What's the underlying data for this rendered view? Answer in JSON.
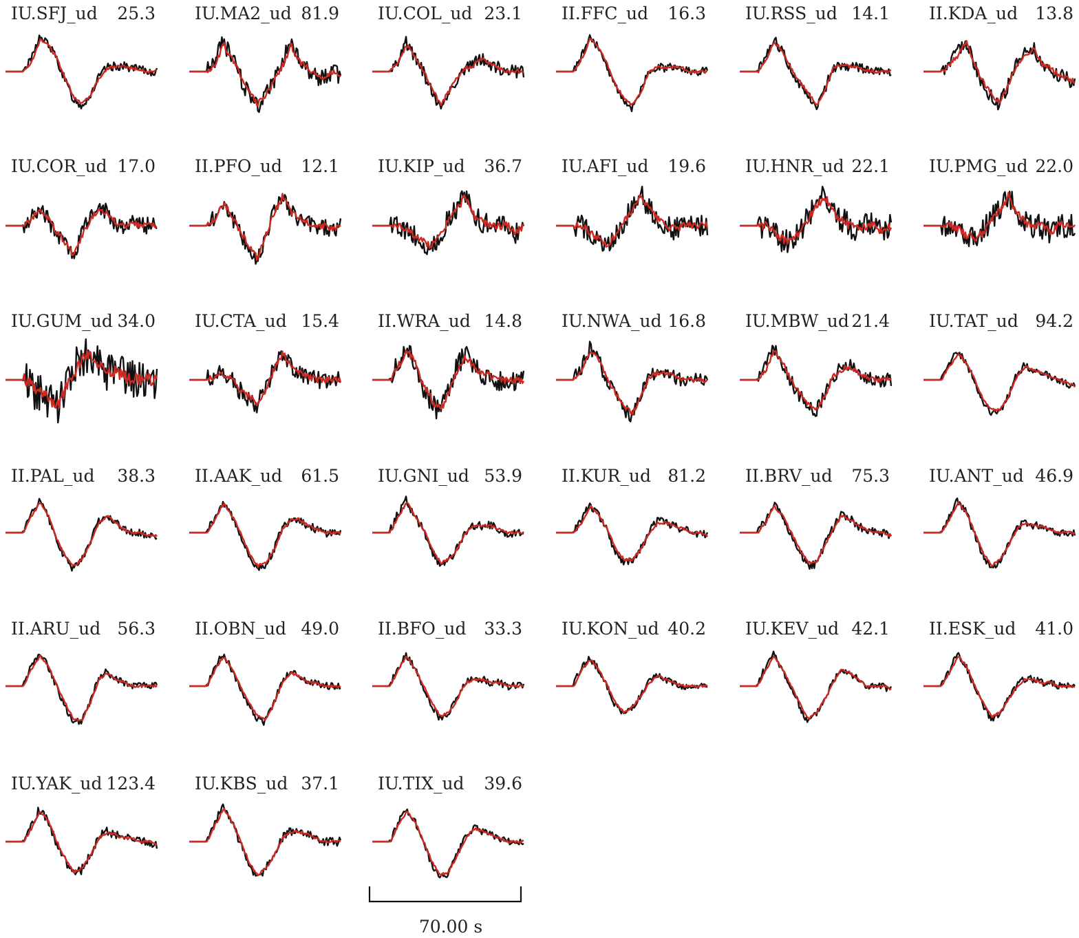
{
  "colors": {
    "observed": "#111111",
    "synthetic": "#cc2a22",
    "text": "#222222"
  },
  "stations": [
    {
      "name": "IU.SFJ_ud",
      "value": "25.3",
      "shape": [
        0,
        0,
        0,
        0.3,
        0.95,
        0.8,
        0.4,
        -0.2,
        -0.75,
        -0.95,
        -0.7,
        -0.2,
        0.1,
        0.15,
        0.15,
        0.1,
        0.05,
        0,
        0
      ],
      "noise": 0.12,
      "lag": 0.4
    },
    {
      "name": "IU.MA2_ud",
      "value": "81.9",
      "shape": [
        0,
        0,
        0,
        0.25,
        0.8,
        0.4,
        -0.1,
        -0.6,
        -1,
        -0.7,
        -0.3,
        0.2,
        0.8,
        0.3,
        0.1,
        -0.1,
        -0.2,
        0,
        -0.1
      ],
      "noise": 0.25,
      "lag": 0.6
    },
    {
      "name": "IU.COL_ud",
      "value": "23.1",
      "shape": [
        0,
        0,
        0,
        0.3,
        0.8,
        0.4,
        0,
        -0.5,
        -1,
        -0.6,
        -0.2,
        0.1,
        0.2,
        0.4,
        0.2,
        0.1,
        0,
        0,
        0
      ],
      "noise": 0.18,
      "lag": 0.3
    },
    {
      "name": "II.FFC_ud",
      "value": "16.3",
      "shape": [
        0,
        0,
        0,
        0.4,
        1,
        0.7,
        0.2,
        -0.4,
        -0.8,
        -1,
        -0.6,
        0,
        0.15,
        0.1,
        0.15,
        0.1,
        0,
        0,
        0
      ],
      "noise": 0.12,
      "lag": 0.3
    },
    {
      "name": "IU.RSS_ud",
      "value": "14.1",
      "shape": [
        0,
        0,
        0,
        0.3,
        0.9,
        0.6,
        0.1,
        -0.3,
        -0.6,
        -1,
        -0.6,
        0.1,
        0.2,
        0.15,
        0.1,
        0.05,
        0,
        0,
        0
      ],
      "noise": 0.14,
      "lag": 0.3
    },
    {
      "name": "II.KDA_ud",
      "value": "13.8",
      "shape": [
        0,
        0,
        0,
        0.2,
        0.5,
        0.9,
        0.2,
        -0.3,
        -0.7,
        -0.9,
        -0.4,
        0.2,
        0.5,
        0.7,
        0.2,
        0.1,
        -0.1,
        -0.2,
        -0.3
      ],
      "noise": 0.2,
      "lag": 0.3
    },
    {
      "name": "IU.COR_ud",
      "value": "17.0",
      "shape": [
        0,
        0,
        0,
        0.2,
        0.5,
        0.2,
        -0.2,
        -0.5,
        -0.9,
        -0.3,
        0.2,
        0.5,
        0.4,
        0.1,
        0,
        0.1,
        0,
        0,
        0
      ],
      "noise": 0.25,
      "lag": 0.4
    },
    {
      "name": "II.PFO_ud",
      "value": "12.1",
      "shape": [
        0,
        0,
        0,
        0.2,
        0.7,
        0.3,
        -0.2,
        -0.6,
        -1,
        -0.3,
        0.4,
        0.9,
        0.4,
        0.2,
        0.1,
        0,
        0,
        -0.1,
        0
      ],
      "noise": 0.25,
      "lag": 0.5
    },
    {
      "name": "IU.KIP_ud",
      "value": "36.7",
      "shape": [
        0,
        0,
        0,
        0,
        -0.1,
        -0.3,
        -0.5,
        -0.6,
        -0.3,
        0.2,
        0.5,
        0.9,
        0.3,
        0.1,
        0,
        0,
        0,
        -0.2,
        0
      ],
      "noise": 0.3,
      "lag": 0.5
    },
    {
      "name": "IU.AFI_ud",
      "value": "19.6",
      "shape": [
        0,
        0,
        0,
        0,
        -0.2,
        -0.4,
        -0.6,
        -0.3,
        0.1,
        0.5,
        0.9,
        0.5,
        0.2,
        0,
        -0.1,
        0,
        0,
        0,
        0
      ],
      "noise": 0.3,
      "lag": 0.5
    },
    {
      "name": "IU.HNR_ud",
      "value": "22.1",
      "shape": [
        0,
        0,
        0,
        0,
        -0.2,
        -0.4,
        -0.5,
        -0.2,
        0.2,
        0.6,
        0.9,
        0.4,
        0.2,
        0,
        -0.1,
        0,
        0,
        -0.2,
        0
      ],
      "noise": 0.35,
      "lag": 0.5
    },
    {
      "name": "IU.PMG_ud",
      "value": "22.0",
      "shape": [
        0,
        0,
        0,
        0,
        -0.1,
        -0.3,
        -0.4,
        -0.2,
        0.2,
        0.5,
        0.9,
        0.4,
        0.1,
        0,
        0,
        -0.2,
        0,
        0,
        0
      ],
      "noise": 0.35,
      "lag": 0.5
    },
    {
      "name": "IU.GUM_ud",
      "value": "34.0",
      "shape": [
        0,
        0,
        0,
        -0.2,
        -0.4,
        -0.6,
        -0.8,
        -0.3,
        0.2,
        0.6,
        0.8,
        0.4,
        0.2,
        0.3,
        0.1,
        0,
        0,
        0,
        0
      ],
      "noise": 0.55,
      "lag": 0.4
    },
    {
      "name": "IU.CTA_ud",
      "value": "15.4",
      "shape": [
        0,
        0,
        0,
        0.1,
        0.2,
        0,
        -0.3,
        -0.5,
        -0.7,
        -0.3,
        0.3,
        0.8,
        0.4,
        0.2,
        0.1,
        0,
        0,
        0,
        0
      ],
      "noise": 0.25,
      "lag": 0.4
    },
    {
      "name": "II.WRA_ud",
      "value": "14.8",
      "shape": [
        0,
        0,
        0,
        0.4,
        0.9,
        0.5,
        -0.2,
        -0.6,
        -0.9,
        -0.4,
        0.3,
        0.7,
        0.4,
        0.2,
        0.1,
        0,
        0,
        0,
        0
      ],
      "noise": 0.3,
      "lag": 0.4
    },
    {
      "name": "IU.NWA_ud",
      "value": "16.8",
      "shape": [
        0,
        0,
        0,
        0.3,
        0.9,
        0.6,
        0,
        -0.4,
        -0.8,
        -1,
        -0.5,
        0.1,
        0.2,
        0.2,
        0.1,
        0,
        0,
        0,
        0
      ],
      "noise": 0.2,
      "lag": 0.3
    },
    {
      "name": "IU.MBW_ud",
      "value": "21.4",
      "shape": [
        0,
        0,
        0,
        0.3,
        0.9,
        0.5,
        0,
        -0.4,
        -0.7,
        -0.9,
        -0.5,
        0.1,
        0.3,
        0.4,
        0.2,
        0.1,
        0,
        0,
        0
      ],
      "noise": 0.2,
      "lag": 0.3
    },
    {
      "name": "IU.TAT_ud",
      "value": "94.2",
      "shape": [
        0,
        0,
        0,
        0.4,
        0.8,
        0.5,
        0,
        -0.6,
        -0.9,
        -0.9,
        -0.5,
        0.1,
        0.4,
        0.3,
        0.2,
        0.1,
        0,
        -0.1,
        -0.2
      ],
      "noise": 0.1,
      "lag": 0.4
    },
    {
      "name": "II.PAL_ud",
      "value": "38.3",
      "shape": [
        0,
        0,
        0,
        0.5,
        0.9,
        0.5,
        -0.2,
        -0.7,
        -1,
        -0.8,
        -0.3,
        0.3,
        0.5,
        0.3,
        0.1,
        0,
        0,
        -0.1,
        -0.1
      ],
      "noise": 0.1,
      "lag": 0.4
    },
    {
      "name": "II.AAK_ud",
      "value": "61.5",
      "shape": [
        0,
        0,
        0,
        0.4,
        0.9,
        0.5,
        0,
        -0.6,
        -1,
        -0.9,
        -0.5,
        0.1,
        0.4,
        0.4,
        0.2,
        0.1,
        0,
        0,
        0
      ],
      "noise": 0.12,
      "lag": 0.4
    },
    {
      "name": "IU.GNI_ud",
      "value": "53.9",
      "shape": [
        0,
        0,
        0,
        0.5,
        0.9,
        0.5,
        0.1,
        -0.5,
        -0.9,
        -0.8,
        -0.5,
        0,
        0.2,
        0.2,
        0.2,
        0.1,
        0,
        0,
        0
      ],
      "noise": 0.12,
      "lag": 0.3
    },
    {
      "name": "II.KUR_ud",
      "value": "81.2",
      "shape": [
        0,
        0,
        0,
        0.3,
        0.8,
        0.5,
        0.1,
        -0.5,
        -0.8,
        -0.8,
        -0.5,
        0,
        0.3,
        0.3,
        0.2,
        0.1,
        0,
        0,
        -0.1
      ],
      "noise": 0.12,
      "lag": 0.3
    },
    {
      "name": "II.BRV_ud",
      "value": "75.3",
      "shape": [
        0,
        0,
        0,
        0.3,
        0.8,
        0.5,
        0,
        -0.5,
        -0.9,
        -0.9,
        -0.4,
        0.1,
        0.5,
        0.4,
        0.2,
        0.1,
        0,
        0,
        -0.1
      ],
      "noise": 0.12,
      "lag": 0.4
    },
    {
      "name": "IU.ANT_ud",
      "value": "46.9",
      "shape": [
        0,
        0,
        0,
        0.4,
        0.9,
        0.6,
        0,
        -0.6,
        -1,
        -0.8,
        -0.4,
        0.1,
        0.3,
        0.2,
        0.2,
        0.1,
        0,
        0,
        0
      ],
      "noise": 0.1,
      "lag": 0.3
    },
    {
      "name": "II.ARU_ud",
      "value": "56.3",
      "shape": [
        0,
        0,
        0,
        0.5,
        0.9,
        0.6,
        0,
        -0.5,
        -1,
        -1,
        -0.5,
        0.2,
        0.4,
        0.2,
        0.1,
        0,
        0,
        0,
        0
      ],
      "noise": 0.1,
      "lag": 0.3
    },
    {
      "name": "II.OBN_ud",
      "value": "49.0",
      "shape": [
        0,
        0,
        0,
        0.5,
        0.9,
        0.5,
        0,
        -0.5,
        -0.9,
        -1,
        -0.5,
        0.1,
        0.4,
        0.3,
        0.1,
        0.1,
        0,
        0,
        0
      ],
      "noise": 0.1,
      "lag": 0.3
    },
    {
      "name": "II.BFO_ud",
      "value": "33.3",
      "shape": [
        0,
        0,
        0,
        0.5,
        0.9,
        0.5,
        0,
        -0.5,
        -0.9,
        -0.8,
        -0.4,
        0.1,
        0.2,
        0.2,
        0.1,
        0.1,
        0,
        0,
        0
      ],
      "noise": 0.1,
      "lag": 0.3
    },
    {
      "name": "IU.KON_ud",
      "value": "40.2",
      "shape": [
        0,
        0,
        0,
        0.5,
        0.8,
        0.5,
        0,
        -0.5,
        -0.8,
        -0.6,
        -0.3,
        0.1,
        0.3,
        0.2,
        0.1,
        0,
        0,
        0,
        0
      ],
      "noise": 0.1,
      "lag": 0.3
    },
    {
      "name": "IU.KEV_ud",
      "value": "42.1",
      "shape": [
        0,
        0,
        0,
        0.5,
        0.9,
        0.5,
        0,
        -0.5,
        -1,
        -0.8,
        -0.4,
        0.1,
        0.5,
        0.4,
        0.2,
        0,
        0,
        0,
        -0.1
      ],
      "noise": 0.1,
      "lag": 0.4
    },
    {
      "name": "II.ESK_ud",
      "value": "41.0",
      "shape": [
        0,
        0,
        0,
        0.4,
        0.9,
        0.6,
        0,
        -0.5,
        -0.9,
        -0.8,
        -0.4,
        0,
        0.2,
        0.2,
        0.1,
        0.1,
        0,
        0,
        0
      ],
      "noise": 0.1,
      "lag": 0.3
    },
    {
      "name": "IU.YAK_ud",
      "value": "123.4",
      "shape": [
        0,
        0,
        0,
        0.4,
        0.9,
        0.6,
        0,
        -0.5,
        -0.9,
        -0.8,
        -0.4,
        0.1,
        0.3,
        0.2,
        0.1,
        0.1,
        0,
        0,
        -0.1
      ],
      "noise": 0.12,
      "lag": 0.3
    },
    {
      "name": "IU.KBS_ud",
      "value": "37.1",
      "shape": [
        0,
        0,
        0,
        0.5,
        1,
        0.6,
        0,
        -0.6,
        -1,
        -0.8,
        -0.4,
        0.1,
        0.3,
        0.3,
        0.2,
        0.1,
        0,
        0,
        0
      ],
      "noise": 0.12,
      "lag": 0.3
    },
    {
      "name": "IU.TIX_ud",
      "value": "39.6",
      "shape": [
        0,
        0,
        0,
        0.5,
        0.9,
        0.6,
        0,
        -0.6,
        -1,
        -0.9,
        -0.4,
        0.1,
        0.4,
        0.3,
        0.2,
        0.1,
        0,
        0,
        0
      ],
      "noise": 0.1,
      "lag": 0.3
    }
  ],
  "scale_bar": {
    "label": "70.00 s"
  }
}
